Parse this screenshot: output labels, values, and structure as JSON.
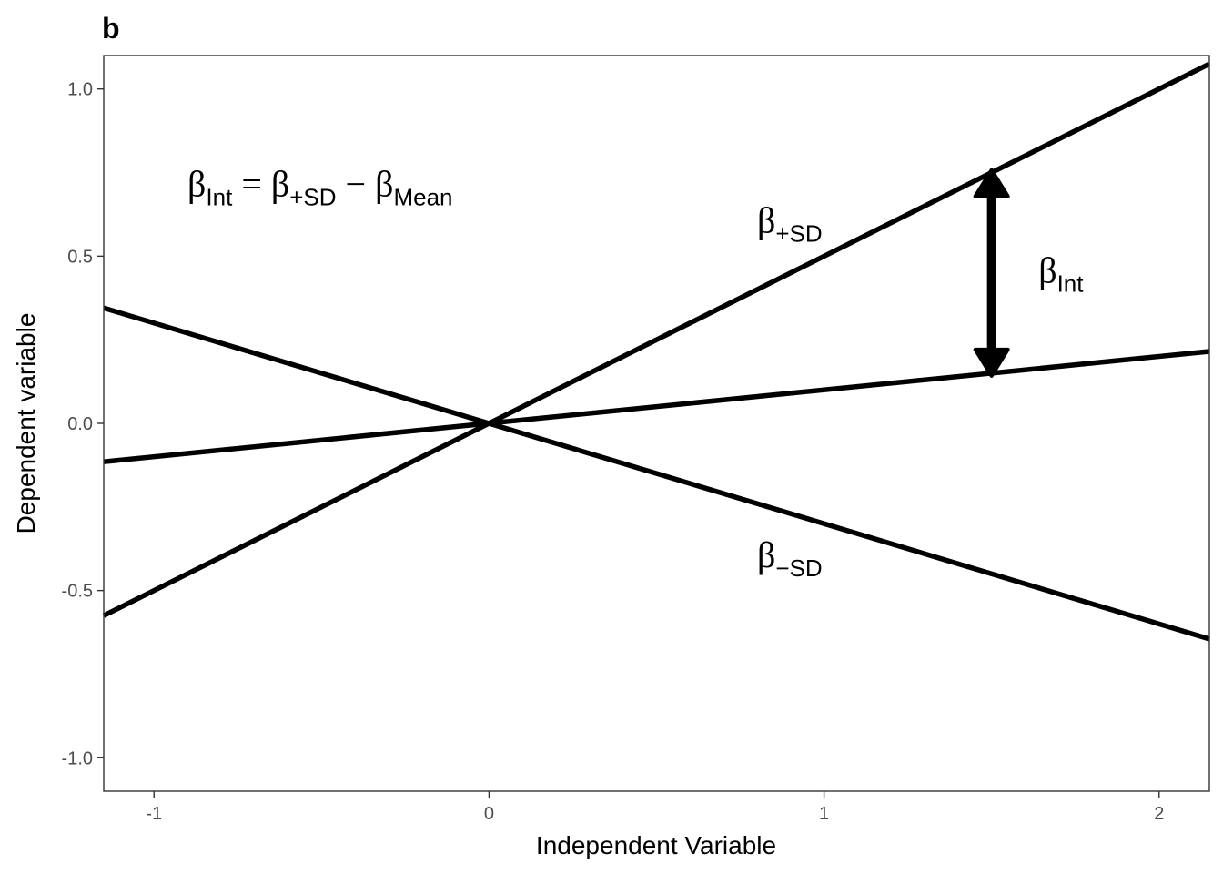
{
  "chart_data": {
    "type": "line",
    "panel_tag": "b",
    "xlabel": "Independent Variable",
    "ylabel": "Dependent variable",
    "xlim": [
      -1.15,
      2.15
    ],
    "ylim": [
      -1.1,
      1.1
    ],
    "xticks": [
      -1,
      0,
      1,
      2
    ],
    "xtick_labels": [
      "-1",
      "0",
      "1",
      "2"
    ],
    "yticks": [
      -1.0,
      -0.5,
      0.0,
      0.5,
      1.0
    ],
    "ytick_labels": [
      "-1.0",
      "-0.5",
      "0.0",
      "0.5",
      "1.0"
    ],
    "grid": false,
    "legend": "none",
    "series": [
      {
        "x": [
          -1.15,
          2.15
        ],
        "y": [
          -0.575,
          1.075
        ],
        "color": "#000000"
      },
      {
        "x": [
          -1.15,
          2.15
        ],
        "y": [
          -0.115,
          0.215
        ],
        "color": "#000000"
      },
      {
        "x": [
          -1.15,
          2.15
        ],
        "y": [
          0.345,
          -0.645
        ],
        "color": "#000000"
      }
    ],
    "arrow": {
      "x": 1.5,
      "y_from": 0.15,
      "y_to": 0.75,
      "double_headed": true,
      "color": "#000000"
    },
    "annotations": [
      {
        "id": "formula",
        "x": -0.9,
        "y": 0.68,
        "parts": [
          {
            "text": "β",
            "role": "base"
          },
          {
            "text": "Int",
            "role": "sub"
          },
          {
            "text": " = ",
            "role": "base"
          },
          {
            "text": "β",
            "role": "base"
          },
          {
            "text": "+SD",
            "role": "sub"
          },
          {
            "text": " − ",
            "role": "base"
          },
          {
            "text": "β",
            "role": "base"
          },
          {
            "text": "Mean",
            "role": "sub"
          }
        ]
      },
      {
        "id": "beta-plus-sd",
        "x": 0.8,
        "y": 0.57,
        "parts": [
          {
            "text": "β",
            "role": "base"
          },
          {
            "text": "+SD",
            "role": "sub"
          }
        ]
      },
      {
        "id": "beta-minus-sd",
        "x": 0.8,
        "y": -0.43,
        "parts": [
          {
            "text": "β",
            "role": "base"
          },
          {
            "text": "−SD",
            "role": "sub"
          }
        ]
      },
      {
        "id": "beta-int",
        "x": 1.64,
        "y": 0.42,
        "parts": [
          {
            "text": "β",
            "role": "base"
          },
          {
            "text": "Int",
            "role": "sub"
          }
        ]
      }
    ]
  }
}
